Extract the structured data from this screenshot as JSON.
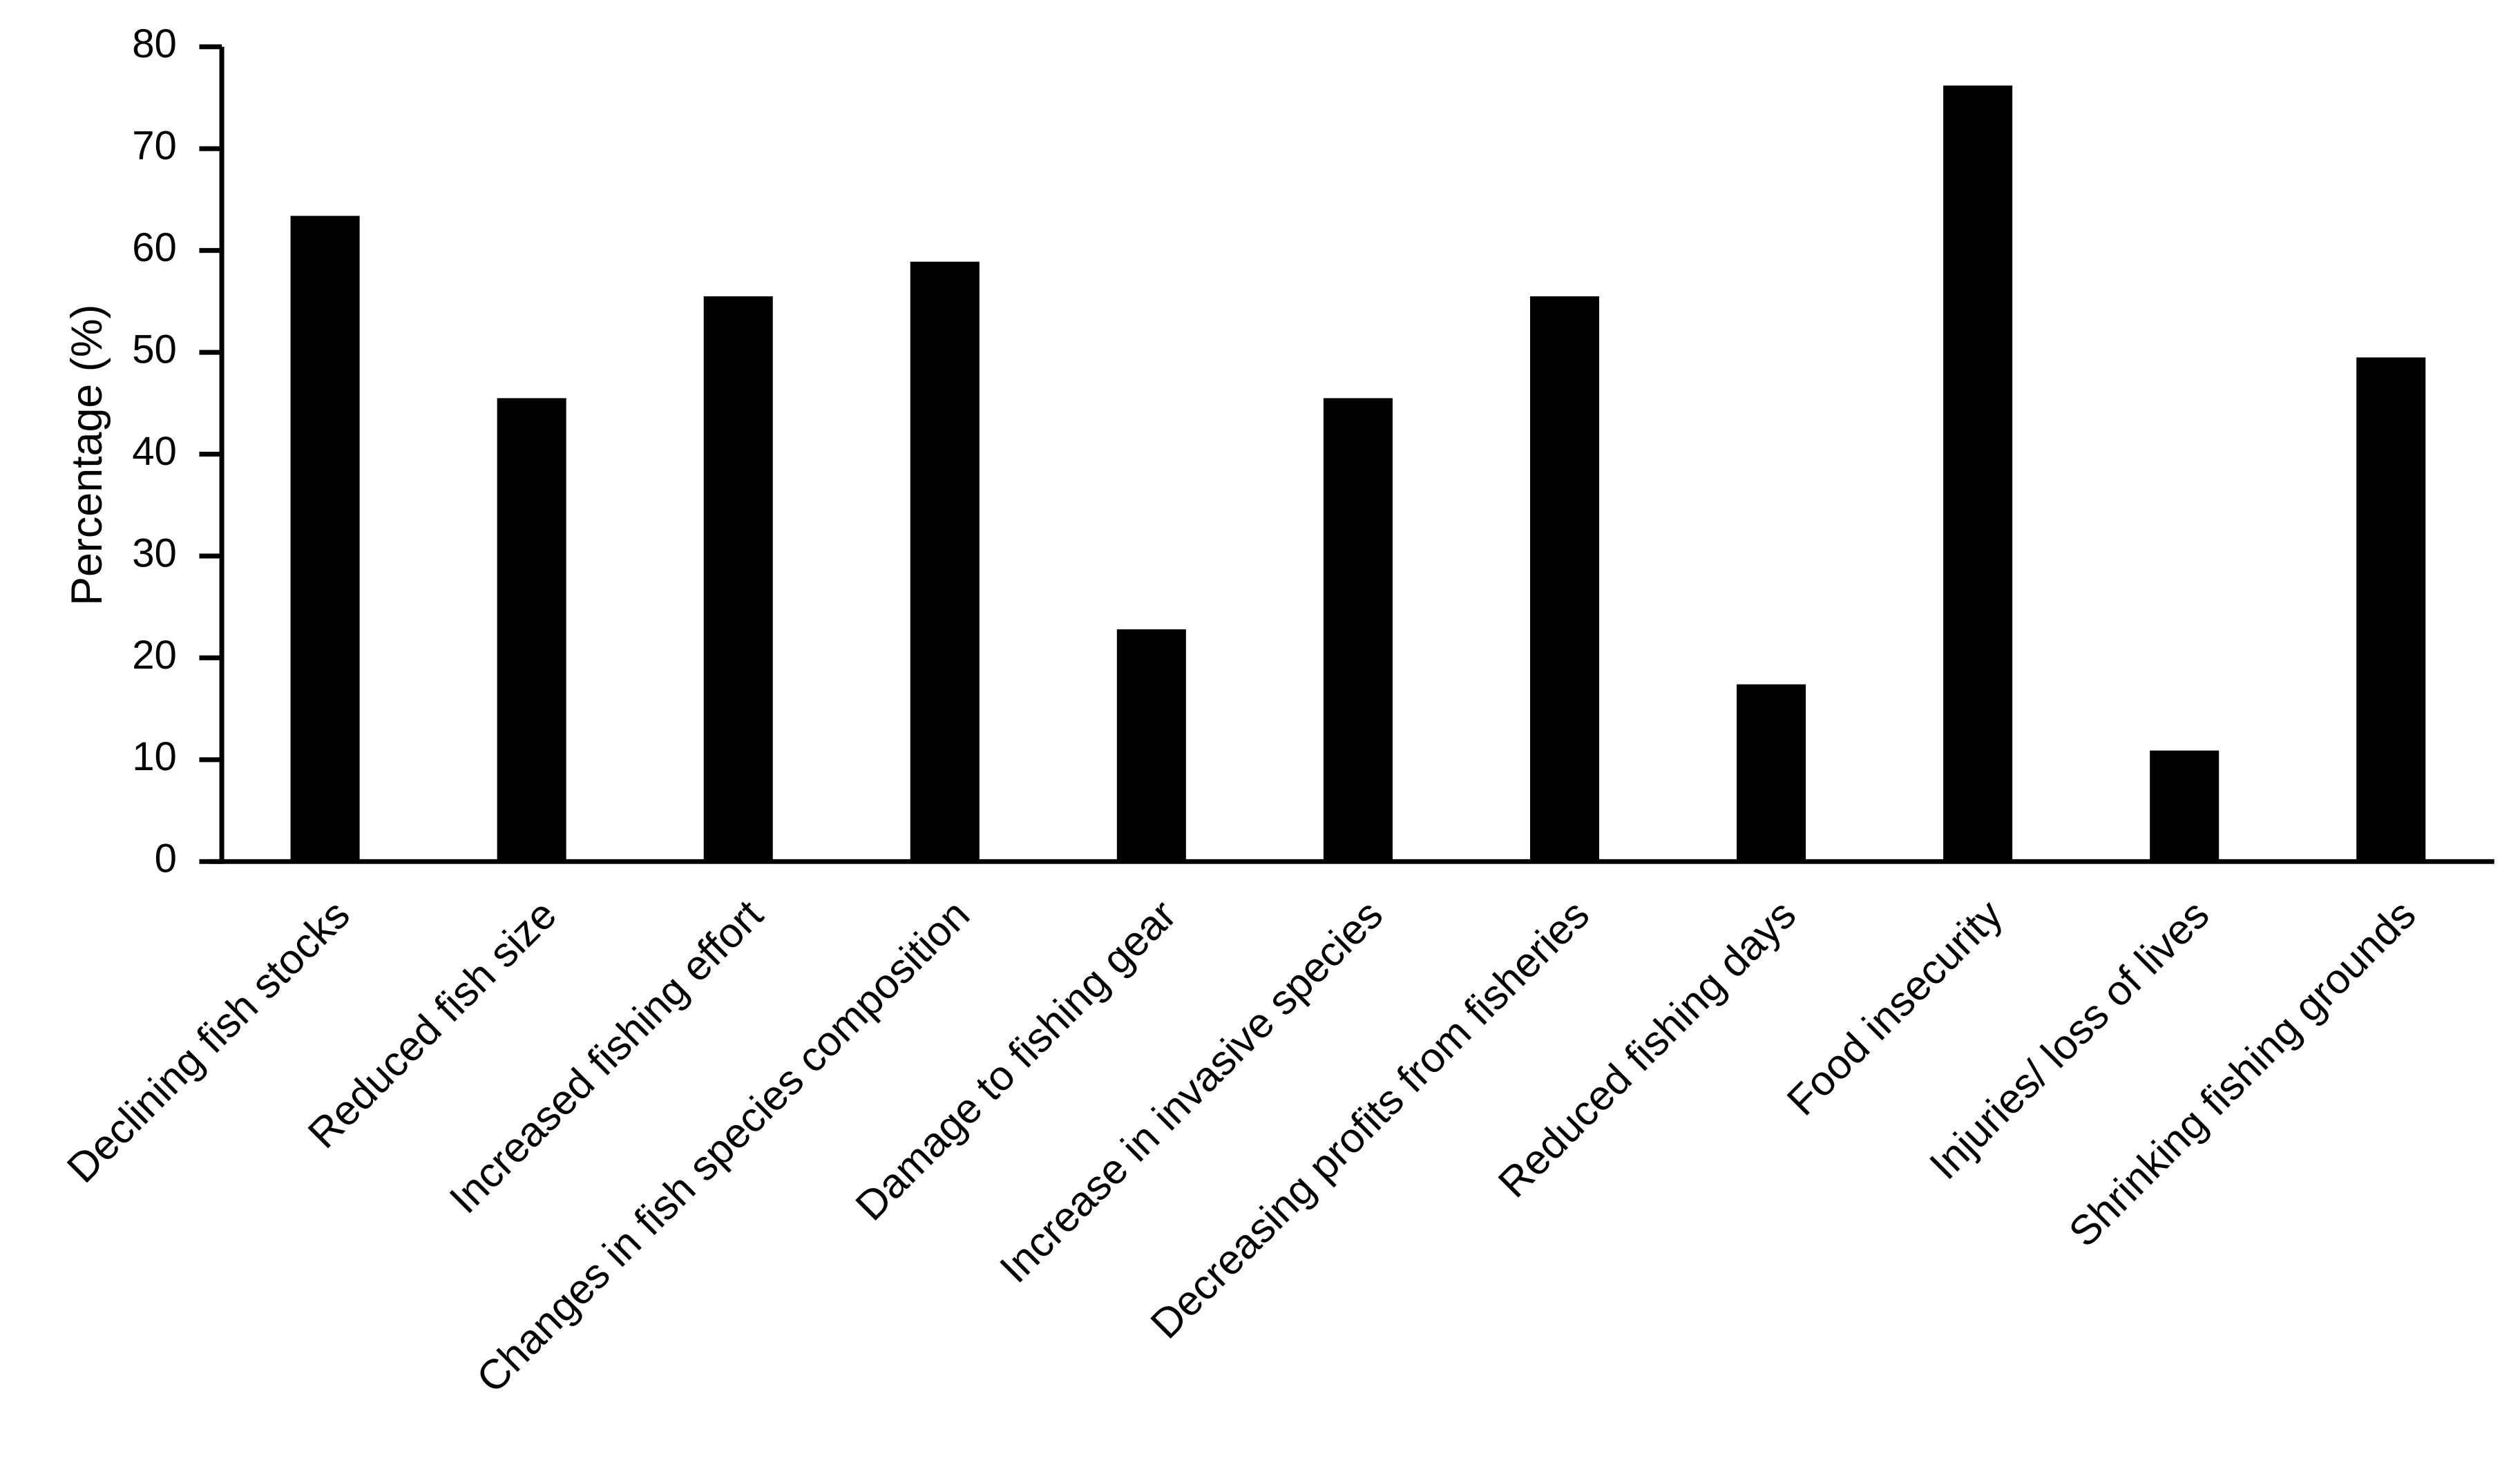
{
  "chart_data": {
    "type": "bar",
    "y_label": "Percentage (%)",
    "categories": [
      "Declining fish stocks",
      "Reduced fish size",
      "Increased fishing effort",
      "Changes in fish species composition",
      "Damage to fishing gear",
      "Increase in invasive species",
      "Decreasing profits from fisheries",
      "Reduced fishing days",
      "Food insecurity",
      "Injuries/ loss of lives",
      "Shrinking fishing grounds"
    ],
    "values": [
      63.4,
      45.5,
      55.5,
      58.9,
      22.8,
      45.5,
      55.5,
      17.4,
      76.2,
      10.9,
      49.5
    ],
    "color": "#000000",
    "ylim": [
      0,
      80
    ],
    "yticks": [
      0,
      10,
      20,
      30,
      40,
      50,
      60,
      70,
      80
    ],
    "grid": false
  }
}
